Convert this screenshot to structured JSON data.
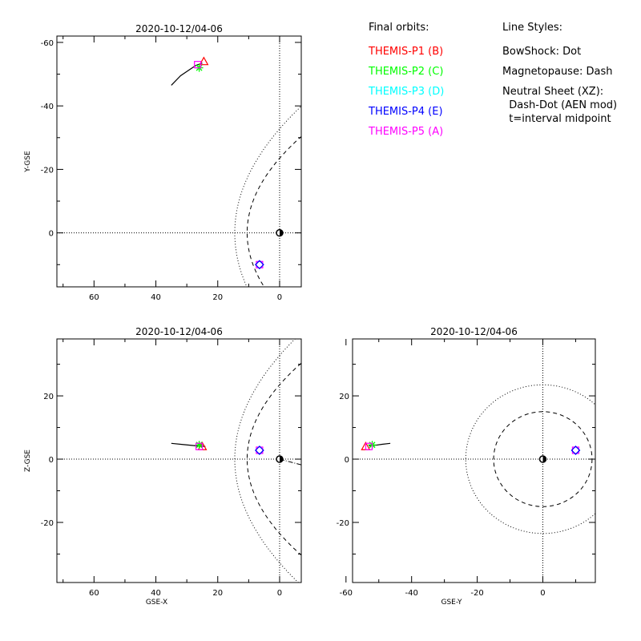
{
  "legend": {
    "heading": "Final orbits:",
    "probes": [
      {
        "label": "THEMIS-P1 (B)",
        "color": "#ff0000"
      },
      {
        "label": "THEMIS-P2 (C)",
        "color": "#00ff00"
      },
      {
        "label": "THEMIS-P3 (D)",
        "color": "#00ffff"
      },
      {
        "label": "THEMIS-P4 (E)",
        "color": "#0000ff"
      },
      {
        "label": "THEMIS-P5 (A)",
        "color": "#ff00ff"
      }
    ]
  },
  "line_styles": {
    "heading": "Line Styles:",
    "lines": [
      "BowShock: Dot",
      "Magnetopause: Dash",
      "Neutral Sheet (XZ):",
      "  Dash-Dot (AEN mod)",
      "  t=interval midpoint"
    ]
  },
  "chart_data": [
    {
      "type": "line",
      "panel": "xy",
      "title": "2020-10-12/04-06",
      "xlabel": "",
      "ylabel": "Y-GSE",
      "xlim": [
        72,
        -7
      ],
      "ylim": [
        17,
        -62
      ],
      "xticks": [
        60,
        40,
        20,
        0
      ],
      "yticks": [
        -60,
        -40,
        -20,
        0
      ],
      "orbit": {
        "x": [
          35,
          32,
          29,
          27,
          25
        ],
        "y": [
          -46.5,
          -49.5,
          -51.5,
          -52.8,
          -53.5
        ]
      },
      "inner_probes": [
        {
          "probe": "P1",
          "marker": "triangle",
          "color": "#ff0000",
          "x": 24.5,
          "y": -54
        },
        {
          "probe": "P2",
          "marker": "asterisk",
          "color": "#00ff00",
          "x": 26,
          "y": -52
        },
        {
          "probe": "P5",
          "marker": "square",
          "color": "#ff00ff",
          "x": 26.5,
          "y": -53
        }
      ],
      "outer_probes": [
        {
          "probe": "P3",
          "marker": "diamond",
          "color": "#00ffff",
          "x": 6.5,
          "y": 10
        },
        {
          "probe": "P4",
          "marker": "diamond",
          "color": "#0000ff",
          "x": 6.5,
          "y": 10
        }
      ],
      "grid": "dotted zero lines"
    },
    {
      "type": "line",
      "panel": "xz",
      "title": "2020-10-12/04-06",
      "xlabel": "GSE-X",
      "ylabel": "Z-GSE",
      "xlim": [
        72,
        -7
      ],
      "ylim": [
        -39,
        38
      ],
      "xticks": [
        60,
        40,
        20,
        0
      ],
      "yticks": [
        20,
        0,
        -20
      ],
      "orbit": {
        "x": [
          35,
          31,
          28,
          26,
          24
        ],
        "y": [
          5.0,
          4.6,
          4.3,
          4.1,
          4.0
        ]
      },
      "inner_probes": [
        {
          "probe": "P1",
          "marker": "triangle",
          "color": "#ff0000",
          "x": 25,
          "y": 4
        },
        {
          "probe": "P2",
          "marker": "asterisk",
          "color": "#00ff00",
          "x": 26,
          "y": 4.5
        },
        {
          "probe": "P5",
          "marker": "square",
          "color": "#ff00ff",
          "x": 26,
          "y": 4
        }
      ],
      "outer_probes": [
        {
          "probe": "P3",
          "marker": "diamond",
          "color": "#00ffff",
          "x": 6.5,
          "y": 2.8
        },
        {
          "probe": "P4",
          "marker": "diamond",
          "color": "#0000ff",
          "x": 6.5,
          "y": 2.8
        }
      ],
      "grid": "dotted zero lines"
    },
    {
      "type": "line",
      "panel": "yz",
      "title": "2020-10-12/04-06",
      "xlabel": "GSE-Y",
      "ylabel": "",
      "xlim": [
        -58,
        16
      ],
      "ylim": [
        -39,
        38
      ],
      "xticks": [
        -60,
        -40,
        -20,
        0
      ],
      "yticks": [
        20,
        0,
        -20
      ],
      "orbit": {
        "x": [
          -53,
          -51,
          -49,
          -46.5
        ],
        "y": [
          4.2,
          4.4,
          4.7,
          5.0
        ]
      },
      "inner_probes": [
        {
          "probe": "P1",
          "marker": "triangle",
          "color": "#ff0000",
          "x": -54,
          "y": 4
        },
        {
          "probe": "P2",
          "marker": "asterisk",
          "color": "#00ff00",
          "x": -52,
          "y": 4.5
        },
        {
          "probe": "P5",
          "marker": "square",
          "color": "#ff00ff",
          "x": -53,
          "y": 4
        }
      ],
      "outer_probes": [
        {
          "probe": "P3",
          "marker": "diamond",
          "color": "#00ffff",
          "x": 10,
          "y": 2.8
        },
        {
          "probe": "P4",
          "marker": "diamond",
          "color": "#0000ff",
          "x": 10,
          "y": 2.8
        }
      ],
      "circles": [
        {
          "name": "bowshock",
          "style": "dotted",
          "r": 23.5
        },
        {
          "name": "magnetopause",
          "style": "dashed",
          "r": 15
        }
      ],
      "grid": "dotted zero lines"
    }
  ]
}
